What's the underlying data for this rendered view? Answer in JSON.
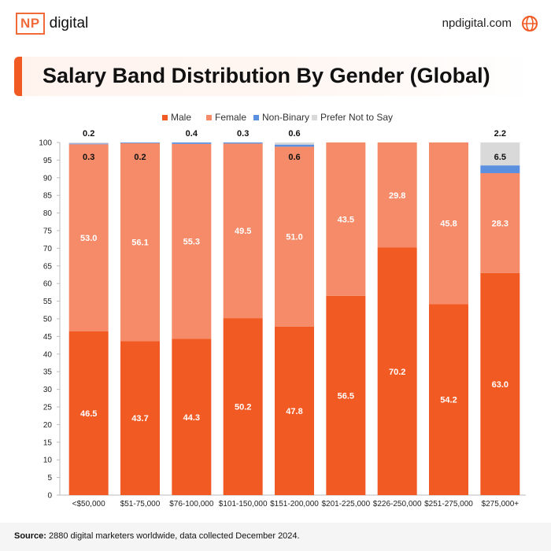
{
  "brand": {
    "logo_mark": "NP",
    "logo_word": "digital",
    "site": "npdigital.com",
    "site_icon": "globe-icon"
  },
  "title": "Salary Band Distribution By Gender (Global)",
  "colors": {
    "male": "#f25a24",
    "female": "#f58b68",
    "nonbinary": "#5b8fe0",
    "prefer": "#d9d9d9",
    "accent": "#f25a24"
  },
  "chart_data": {
    "type": "bar",
    "stacked": true,
    "title": "Salary Band Distribution By Gender (Global)",
    "categories": [
      "<$50,000",
      "$51-75,000",
      "$76-100,000",
      "$101-150,000",
      "$151-200,000",
      "$201-225,000",
      "$226-250,000",
      "$251-275,000",
      "$275,000+"
    ],
    "series": [
      {
        "name": "Male",
        "values": [
          46.5,
          43.7,
          44.3,
          50.2,
          47.8,
          56.5,
          70.2,
          54.2,
          63.0
        ]
      },
      {
        "name": "Female",
        "values": [
          53.0,
          56.1,
          55.3,
          49.5,
          51.0,
          43.5,
          29.8,
          45.8,
          28.3
        ]
      },
      {
        "name": "Non-Binary",
        "values": [
          0.2,
          0.2,
          0.4,
          0.3,
          0.6,
          0,
          0,
          0,
          2.2
        ]
      },
      {
        "name": "Prefer Not to Say",
        "values": [
          0.3,
          0,
          0,
          0,
          0.6,
          0,
          0,
          0,
          6.5
        ]
      }
    ],
    "data_labels": [
      {
        "category": "<$50,000",
        "male": "46.5",
        "female": "53.0",
        "inner": "0.3",
        "top": "0.2"
      },
      {
        "category": "$51-75,000",
        "male": "43.7",
        "female": "56.1",
        "inner": "0.2",
        "top": ""
      },
      {
        "category": "$76-100,000",
        "male": "44.3",
        "female": "55.3",
        "inner": "",
        "top": "0.4"
      },
      {
        "category": "$101-150,000",
        "male": "50.2",
        "female": "49.5",
        "inner": "",
        "top": "0.3"
      },
      {
        "category": "$151-200,000",
        "male": "47.8",
        "female": "51.0",
        "inner": "0.6",
        "top": "0.6"
      },
      {
        "category": "$201-225,000",
        "male": "56.5",
        "female": "43.5",
        "inner": "",
        "top": ""
      },
      {
        "category": "$226-250,000",
        "male": "70.2",
        "female": "29.8",
        "inner": "",
        "top": ""
      },
      {
        "category": "$251-275,000",
        "male": "54.2",
        "female": "45.8",
        "inner": "",
        "top": ""
      },
      {
        "category": "$275,000+",
        "male": "63.0",
        "female": "28.3",
        "inner": "6.5",
        "top": "2.2"
      }
    ],
    "ylim": [
      0,
      100
    ],
    "yticks": [
      0,
      5,
      10,
      15,
      20,
      25,
      30,
      35,
      40,
      45,
      50,
      55,
      60,
      65,
      70,
      75,
      80,
      85,
      90,
      95,
      100
    ],
    "legend": [
      "Male",
      "Female",
      "Non-Binary",
      "Prefer Not to Say"
    ],
    "legend_position": "top-center",
    "xlabel": "",
    "ylabel": ""
  },
  "footer": {
    "source_label": "Source:",
    "source_text": "2880 digital marketers worldwide, data collected December 2024."
  }
}
